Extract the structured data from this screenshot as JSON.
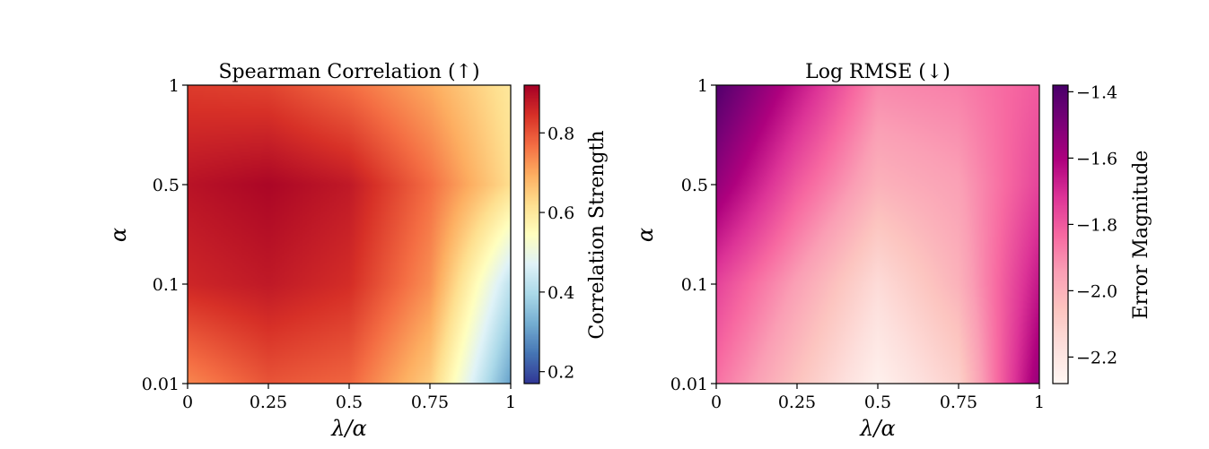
{
  "chart_data": [
    {
      "type": "heatmap",
      "title": "Spearman Correlation (↑)",
      "xlabel": "λ/α",
      "ylabel": "α",
      "x_ticks": [
        "0",
        "0.25",
        "0.5",
        "0.75",
        "1"
      ],
      "x_tick_values": [
        0,
        0.25,
        0.5,
        0.75,
        1
      ],
      "y_ticks": [
        "0.01",
        "0.1",
        "0.5",
        "1"
      ],
      "y_tick_values": [
        0.01,
        0.1,
        0.5,
        1
      ],
      "xlim": [
        0,
        1
      ],
      "ylim": [
        0.01,
        1
      ],
      "y_scale": "piecewise (0.01, 0.1, 0.5, 1 equally spaced)",
      "colormap": "RdYlBu_r",
      "colormap_stops": [
        "#313695",
        "#4575b4",
        "#74add1",
        "#abd9e9",
        "#e0f3f8",
        "#ffffbf",
        "#fee090",
        "#fdae61",
        "#f46d43",
        "#d73027",
        "#a50026"
      ],
      "value_range": [
        0.17,
        0.92
      ],
      "colorbar_label": "Correlation Strength",
      "colorbar_ticks": [
        "0.2",
        "0.4",
        "0.6",
        "0.8"
      ],
      "colorbar_tick_values": [
        0.2,
        0.4,
        0.6,
        0.8
      ],
      "grid_x": [
        0,
        0.25,
        0.5,
        0.75,
        1
      ],
      "grid_y_labels": [
        "0.01",
        "0.1",
        "0.5",
        "1"
      ],
      "values": [
        [
          0.74,
          0.8,
          0.78,
          0.65,
          0.3
        ],
        [
          0.86,
          0.88,
          0.85,
          0.73,
          0.42
        ],
        [
          0.89,
          0.91,
          0.88,
          0.77,
          0.62
        ],
        [
          0.83,
          0.82,
          0.77,
          0.7,
          0.6
        ]
      ]
    },
    {
      "type": "heatmap",
      "title": "Log RMSE (↓)",
      "xlabel": "λ/α",
      "ylabel": "α",
      "x_ticks": [
        "0",
        "0.25",
        "0.5",
        "0.75",
        "1"
      ],
      "x_tick_values": [
        0,
        0.25,
        0.5,
        0.75,
        1
      ],
      "y_ticks": [
        "0.01",
        "0.1",
        "0.5",
        "1"
      ],
      "y_tick_values": [
        0.01,
        0.1,
        0.5,
        1
      ],
      "xlim": [
        0,
        1
      ],
      "ylim": [
        0.01,
        1
      ],
      "y_scale": "piecewise (0.01, 0.1, 0.5, 1 equally spaced)",
      "colormap": "RdPu",
      "colormap_stops": [
        "#fff7f3",
        "#fde0dd",
        "#fcc5c0",
        "#fa9fb5",
        "#f768a1",
        "#dd3497",
        "#ae017e",
        "#7a0177",
        "#49006a"
      ],
      "value_range": [
        -2.28,
        -1.38
      ],
      "colorbar_label": "Error Magnitude",
      "colorbar_ticks": [
        "−1.4",
        "−1.6",
        "−1.8",
        "−2.0",
        "−2.2"
      ],
      "colorbar_tick_values": [
        -1.4,
        -1.6,
        -1.8,
        -2.0,
        -2.2
      ],
      "grid_x": [
        0,
        0.25,
        0.5,
        0.75,
        1
      ],
      "grid_y_labels": [
        "0.01",
        "0.1",
        "0.5",
        "1"
      ],
      "values": [
        [
          -1.85,
          -2.05,
          -2.25,
          -2.1,
          -1.55
        ],
        [
          -1.75,
          -1.95,
          -2.15,
          -2.0,
          -1.65
        ],
        [
          -1.55,
          -1.8,
          -2.0,
          -1.95,
          -1.75
        ],
        [
          -1.4,
          -1.65,
          -1.9,
          -1.88,
          -1.8
        ]
      ]
    }
  ]
}
